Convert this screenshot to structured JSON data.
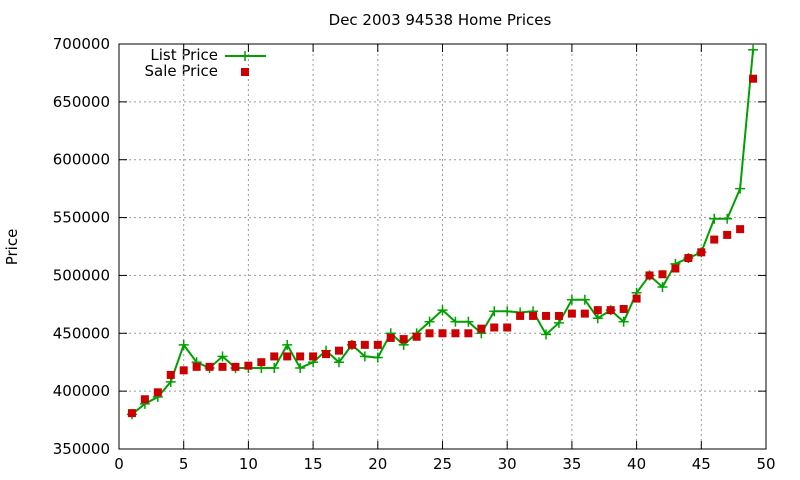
{
  "chart_data": {
    "type": "line",
    "title": "Dec 2003 94538 Home Prices",
    "xlabel": "",
    "ylabel": "Price",
    "xlim": [
      0,
      50
    ],
    "ylim": [
      350000,
      700000
    ],
    "xticks": [
      0,
      5,
      10,
      15,
      20,
      25,
      30,
      35,
      40,
      45,
      50
    ],
    "yticks": [
      350000,
      400000,
      450000,
      500000,
      550000,
      600000,
      650000,
      700000
    ],
    "grid": true,
    "legend_position": "top-left",
    "x": [
      1,
      2,
      3,
      4,
      5,
      6,
      7,
      8,
      9,
      10,
      11,
      12,
      13,
      14,
      15,
      16,
      17,
      18,
      19,
      20,
      21,
      22,
      23,
      24,
      25,
      26,
      27,
      28,
      29,
      30,
      31,
      32,
      33,
      34,
      35,
      36,
      37,
      38,
      39,
      40,
      41,
      42,
      43,
      44,
      45,
      46,
      47,
      48,
      49
    ],
    "series": [
      {
        "name": "List Price",
        "style": "line-plus",
        "color": "#00a000",
        "values": [
          380000,
          389000,
          395000,
          408000,
          440000,
          425000,
          420000,
          430000,
          420000,
          420000,
          420000,
          420000,
          440000,
          420000,
          425000,
          435000,
          425000,
          440000,
          430000,
          429000,
          450000,
          440000,
          450000,
          460000,
          470000,
          460000,
          460000,
          450000,
          469000,
          469000,
          468000,
          469000,
          449000,
          459000,
          479000,
          479000,
          463000,
          470000,
          460000,
          485000,
          500000,
          490000,
          510000,
          515000,
          520000,
          549000,
          549000,
          575000,
          695000
        ]
      },
      {
        "name": "Sale Price",
        "style": "square-points",
        "color": "#cc0000",
        "values": [
          381000,
          393000,
          399000,
          414000,
          418000,
          421000,
          421000,
          421000,
          421000,
          422000,
          425000,
          430000,
          430000,
          430000,
          430000,
          432000,
          435000,
          440000,
          440000,
          440000,
          446000,
          445000,
          447000,
          450000,
          450000,
          450000,
          450000,
          454000,
          455000,
          455000,
          465000,
          465000,
          465000,
          465000,
          467000,
          467000,
          470000,
          470000,
          471000,
          480000,
          500000,
          501000,
          506000,
          515000,
          520000,
          531000,
          535000,
          540000,
          670000
        ]
      }
    ]
  }
}
